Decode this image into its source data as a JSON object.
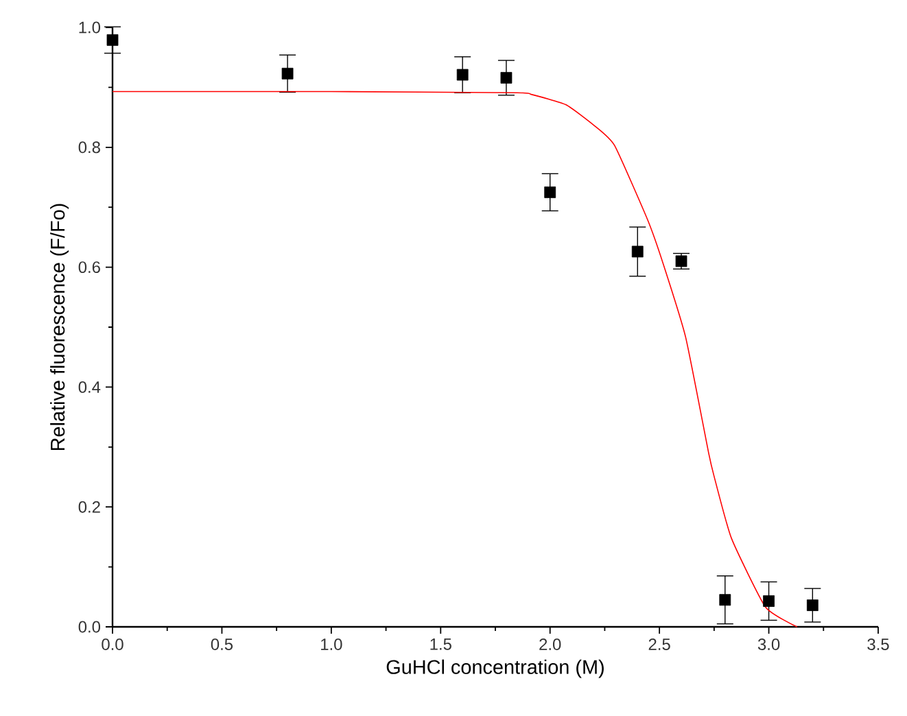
{
  "chart_data": {
    "type": "scatter",
    "xlabel": "GuHCl concentration (M)",
    "ylabel": "Relative fluorescence (F/Fo)",
    "xlim": [
      0,
      3.5
    ],
    "ylim": [
      0,
      1.0
    ],
    "xticks": [
      {
        "value": 0,
        "label": "0.0"
      },
      0.5,
      {
        "value": 1,
        "label": "1.0"
      },
      1.5,
      {
        "value": 2,
        "label": "2.0"
      },
      2.5,
      {
        "value": 3,
        "label": "3.0"
      },
      3.5
    ],
    "yticks": [
      {
        "value": 0,
        "label": "0.0"
      },
      0.2,
      0.4,
      0.6,
      0.8,
      {
        "value": 1,
        "label": "1.0"
      }
    ],
    "series": [
      {
        "color": "#000000",
        "marker": "square",
        "x": [
          0,
          0.8,
          1.6,
          1.8,
          2.0,
          2.4,
          2.6,
          2.8,
          3.0,
          3.2
        ],
        "values": [
          0.979,
          0.923,
          0.921,
          0.916,
          0.725,
          0.626,
          0.61,
          0.045,
          0.043,
          0.036
        ],
        "errors": [
          0.022,
          0.031,
          0.03,
          0.029,
          0.031,
          0.041,
          0.013,
          0.04,
          0.032,
          0.028
        ]
      },
      {
        "type": "line",
        "color": "#ff0000",
        "marker": "none",
        "line_style": "solid",
        "x": [
          0,
          1.0,
          1.85,
          1.917,
          2.073,
          2.203,
          2.295,
          2.446,
          2.516,
          2.62,
          2.725,
          2.75,
          2.829,
          2.985,
          3.129
        ],
        "values": [
          0.893,
          0.893,
          0.891,
          0.888,
          0.871,
          0.836,
          0.803,
          0.679,
          0.607,
          0.483,
          0.29,
          0.251,
          0.148,
          0.033,
          0.0
        ]
      }
    ]
  }
}
